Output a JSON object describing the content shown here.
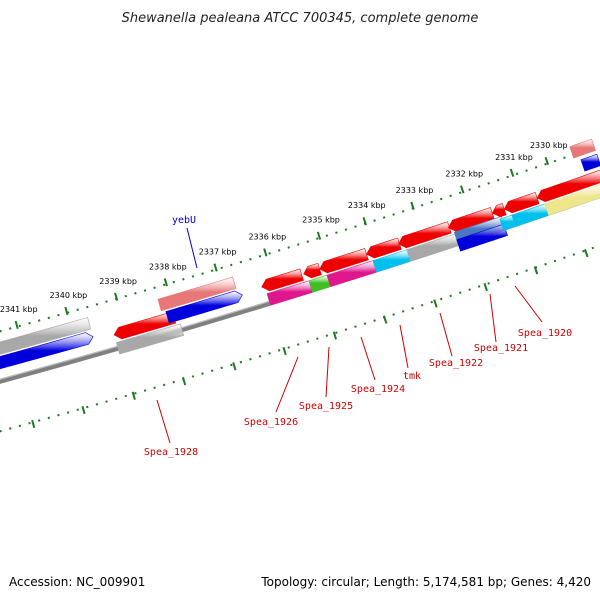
{
  "title": "Shewanella pealeana ATCC 700345, complete genome",
  "footer": {
    "accession": "Accession: NC_009901",
    "summary": "Topology: circular; Length: 5,174,581 bp; Genes: 4,420"
  },
  "ticks": [
    "2330 kbp",
    "2331 kbp",
    "2332 kbp",
    "2333 kbp",
    "2334 kbp",
    "2335 kbp",
    "2336 kbp",
    "2337 kbp",
    "2338 kbp",
    "2339 kbp",
    "2340 kbp",
    "2341 kbp"
  ],
  "gene_labels": [
    "yebU",
    "Spea_1920",
    "Spea_1921",
    "Spea_1922",
    "tmk",
    "Spea_1924",
    "Spea_1925",
    "Spea_1926",
    "Spea_1928"
  ],
  "colors": {
    "red": "#ee0000",
    "pink_red": "#e87878",
    "blue": "#0000dd",
    "grey": "#a8a8a8",
    "cyan": "#00c0ee",
    "magenta": "#e0168c",
    "green": "#40c020",
    "khaki": "#eee68c",
    "steel": "#4a78c0",
    "tick_green": "#1c7a1c",
    "label_red": "#cc0000",
    "label_blue": "#0000cc",
    "backbone": "#808080"
  }
}
